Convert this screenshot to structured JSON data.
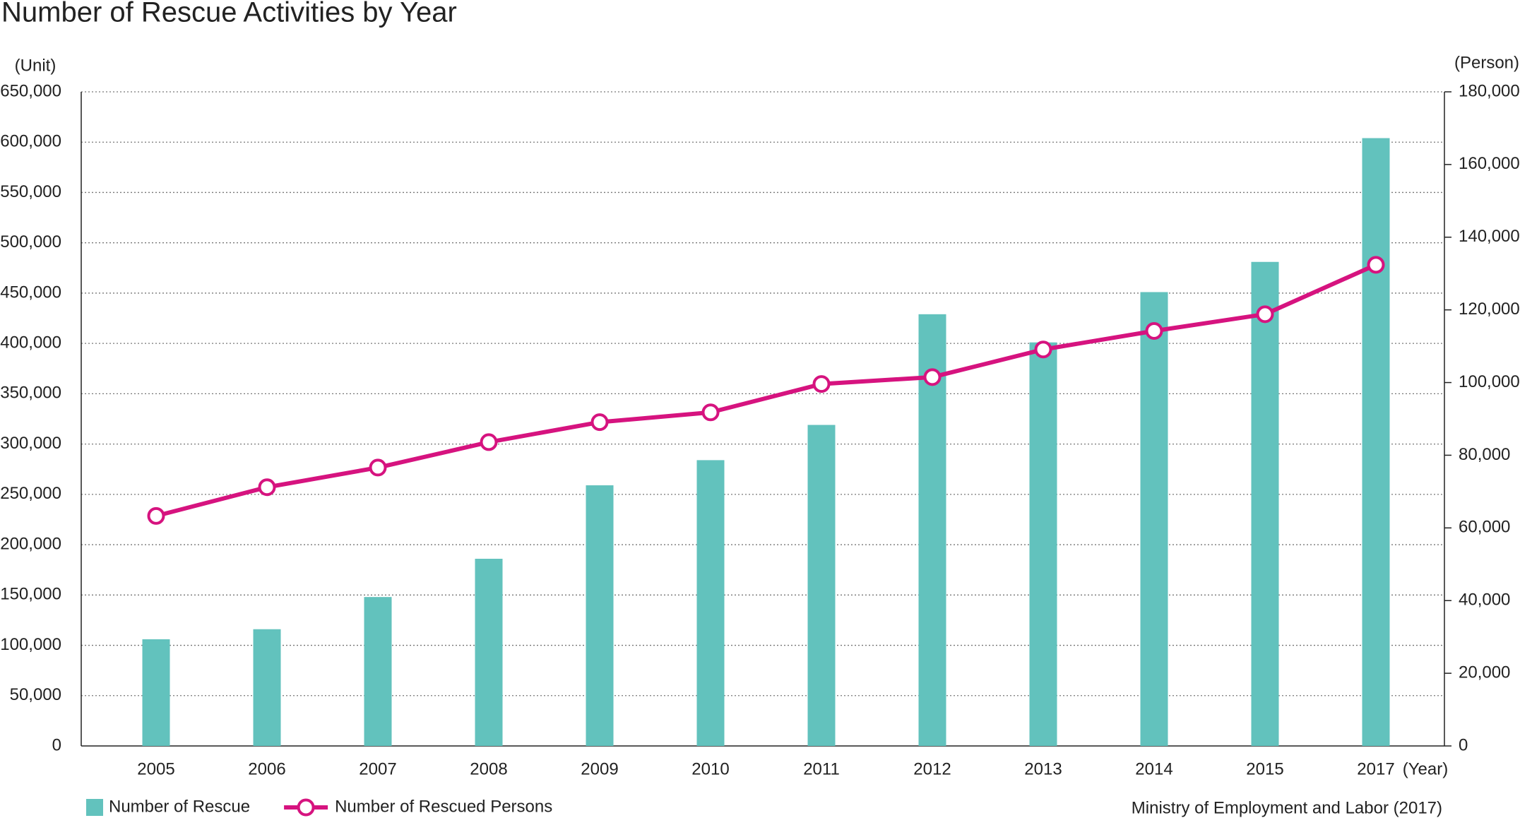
{
  "chart_data": {
    "type": "bar-line",
    "title": "Number of Rescue Activities by Year",
    "y_label": "(Unit)",
    "y2_label": "(Person)",
    "x_label": "(Year)",
    "source": "Ministry of Employment and Labor (2017)",
    "categories": [
      "2005",
      "2006",
      "2007",
      "2008",
      "2009",
      "2010",
      "2011",
      "2012",
      "2013",
      "2014",
      "2015",
      "2017"
    ],
    "series": [
      {
        "name": "Number of Rescue",
        "type": "bar",
        "color": "#62c2bd",
        "values": [
          106000,
          116000,
          148000,
          186000,
          259000,
          284000,
          319000,
          429000,
          401000,
          451000,
          481000,
          604000
        ]
      },
      {
        "name": "Number of Rescued Persons",
        "type": "line",
        "axis": "y2",
        "color": "#d6137f",
        "values": [
          63300,
          71200,
          76600,
          83600,
          89100,
          91800,
          99600,
          101500,
          109100,
          114200,
          118800,
          132400
        ]
      }
    ],
    "ylim": [
      0,
      650000
    ],
    "yticks": [
      0,
      {
        "value": 50000,
        "label": "50,000"
      },
      {
        "value": 100000,
        "label": "100,000"
      },
      {
        "value": 150000,
        "label": "150,000"
      },
      {
        "value": 200000,
        "label": "200,000"
      },
      {
        "value": 250000,
        "label": "250,000"
      },
      {
        "value": 300000,
        "label": "300,000"
      },
      {
        "value": 350000,
        "label": "350,000"
      },
      {
        "value": 400000,
        "label": "400,000"
      },
      {
        "value": 450000,
        "label": "450,000"
      },
      {
        "value": 500000,
        "label": "500,000"
      },
      {
        "value": 550000,
        "label": "550,000"
      },
      {
        "value": 600000,
        "label": "600,000"
      },
      {
        "value": 650000,
        "label": "650,000"
      }
    ],
    "y2lim": [
      0,
      180000
    ],
    "y2ticks": [
      0,
      {
        "value": 20000,
        "label": "20,000"
      },
      {
        "value": 40000,
        "label": "40,000"
      },
      {
        "value": 60000,
        "label": "60,000"
      },
      {
        "value": 80000,
        "label": "80,000"
      },
      {
        "value": 100000,
        "label": "100,000"
      },
      {
        "value": 120000,
        "label": "120,000"
      },
      {
        "value": 140000,
        "label": "140,000"
      },
      {
        "value": 160000,
        "label": "160,000"
      },
      {
        "value": 180000,
        "label": "180,000"
      }
    ],
    "grid": true
  }
}
